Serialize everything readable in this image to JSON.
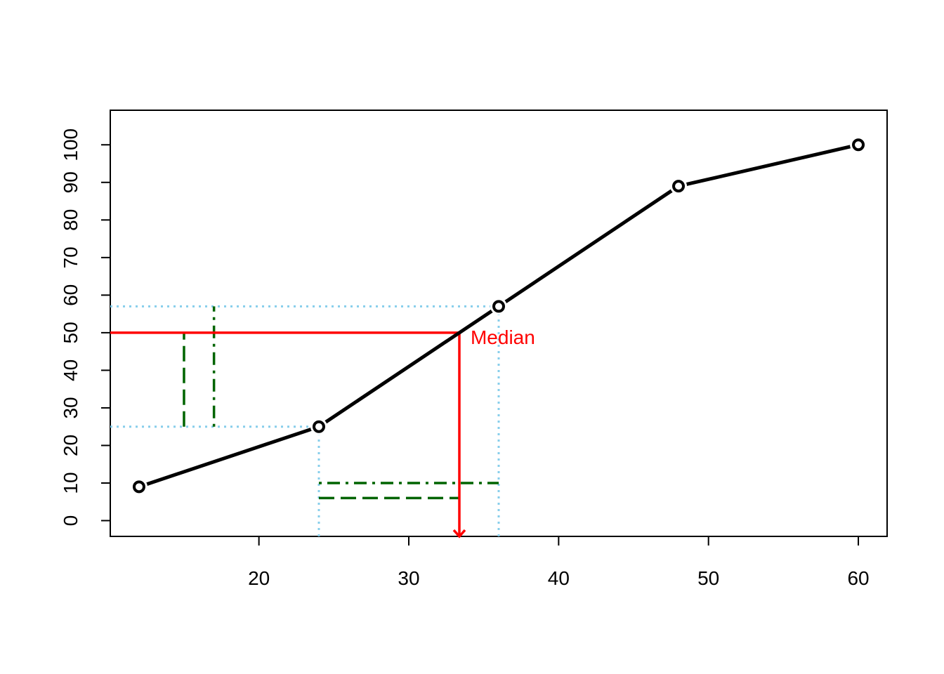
{
  "chart_data": {
    "type": "line",
    "x": [
      12,
      24,
      36,
      48,
      60
    ],
    "series": [
      {
        "color": "#000000",
        "values": [
          9,
          25,
          57,
          89,
          100
        ]
      }
    ],
    "xlim": [
      10.08,
      61.92
    ],
    "xticks": [
      20,
      30,
      40,
      50,
      60
    ],
    "ylim": [
      -4.2,
      109.2
    ],
    "yticks": [
      0,
      10,
      20,
      30,
      40,
      50,
      60,
      70,
      80,
      90,
      100
    ],
    "annotations": [
      {
        "text": "Median",
        "x": 33.375,
        "y": 50,
        "color": "#ff0000"
      }
    ],
    "segments": [
      {
        "x": [
          null,
          36
        ],
        "y": [
          57,
          57
        ],
        "color": "#87ceeb",
        "dash": "dotted"
      },
      {
        "x": [
          null,
          24
        ],
        "y": [
          25,
          25
        ],
        "color": "#87ceeb",
        "dash": "dotted"
      },
      {
        "x": [
          24,
          24
        ],
        "y": [
          null,
          25
        ],
        "color": "#87ceeb",
        "dash": "dotted"
      },
      {
        "x": [
          36,
          36
        ],
        "y": [
          null,
          57
        ],
        "color": "#87ceeb",
        "dash": "dotted"
      },
      {
        "x": [
          15,
          15
        ],
        "y": [
          25,
          50
        ],
        "color": "#006400",
        "dash": "dashed"
      },
      {
        "x": [
          17,
          17
        ],
        "y": [
          25,
          57
        ],
        "color": "#006400",
        "dash": "dotdash"
      },
      {
        "x": [
          24,
          36
        ],
        "y": [
          10,
          10
        ],
        "color": "#006400",
        "dash": "dotdash"
      },
      {
        "x": [
          24,
          33.375
        ],
        "y": [
          6,
          6
        ],
        "color": "#006400",
        "dash": "dashed"
      },
      {
        "x": [
          null,
          33.375
        ],
        "y": [
          50,
          50
        ],
        "color": "#ff0000",
        "dash": "solid"
      },
      {
        "x": [
          33.375,
          33.375
        ],
        "y": [
          50,
          null
        ],
        "color": "#ff0000",
        "dash": "solid",
        "arrow": true
      }
    ]
  }
}
